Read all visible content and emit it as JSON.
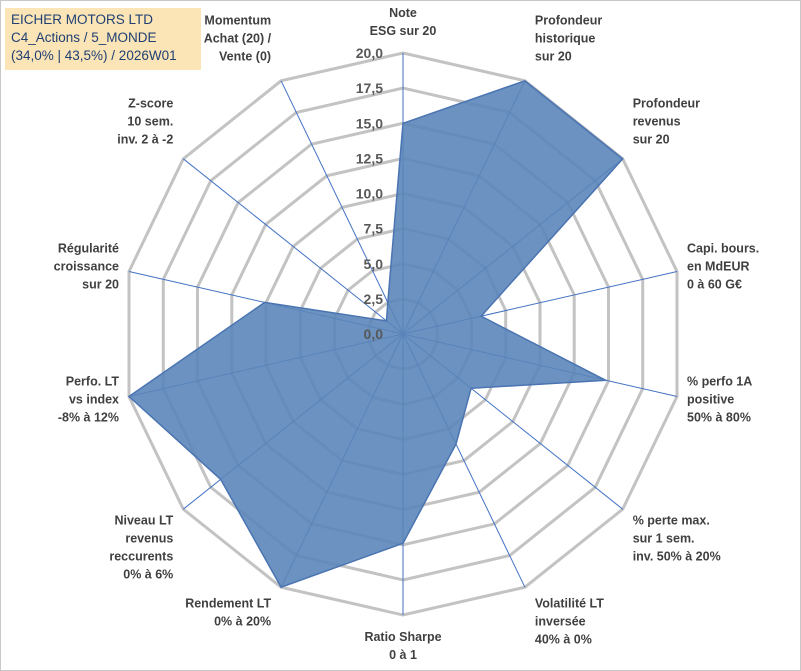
{
  "title_box": {
    "line1": "EICHER MOTORS LTD",
    "line2": "C4_Actions / 5_MONDE",
    "line3": "(34,0% | 43,5%) / 2026W01"
  },
  "colors": {
    "fill": "#5b86b9",
    "stroke": "#4a74b2",
    "grid": "#c3c3c3",
    "spoke": "#4472c4",
    "title_bg": "#fbe5b6",
    "title_text": "#1f3f73"
  },
  "chart_data": {
    "type": "radar",
    "rmin": 0,
    "rmax": 20,
    "tick_step": 2.5,
    "tick_labels": [
      "0,0",
      "2,5",
      "5,0",
      "7,5",
      "10,0",
      "12,5",
      "15,0",
      "17,5",
      "20,0"
    ],
    "axes": [
      {
        "lines": [
          "Note",
          "ESG sur 20"
        ],
        "value": 15.0
      },
      {
        "lines": [
          "Profondeur",
          "historique",
          "sur 20"
        ],
        "value": 20.0
      },
      {
        "lines": [
          "Profondeur",
          "revenus",
          "sur 20"
        ],
        "value": 20.0
      },
      {
        "lines": [
          "Capi. bours.",
          "en MdEUR",
          "0 à 60 G€"
        ],
        "value": 5.7
      },
      {
        "lines": [
          "% perfo 1A",
          "positive",
          "50% à 80%"
        ],
        "value": 14.8
      },
      {
        "lines": [
          "% perte max.",
          "sur 1 sem.",
          "inv. 50% à 20%"
        ],
        "value": 6.2
      },
      {
        "lines": [
          "Volatilité LT",
          "inversée",
          "40% à 0%"
        ],
        "value": 8.7
      },
      {
        "lines": [
          "Ratio Sharpe",
          "0 à 1"
        ],
        "value": 14.9
      },
      {
        "lines": [
          "Rendement LT",
          "0% à 20%"
        ],
        "value": 20.0
      },
      {
        "lines": [
          "Niveau LT",
          "revenus",
          "reccurents",
          "0% à 6%"
        ],
        "value": 16.6
      },
      {
        "lines": [
          "Perfo. LT",
          "vs index",
          "-8% à 12%"
        ],
        "value": 20.0
      },
      {
        "lines": [
          "Régularité",
          "croissance",
          "sur 20"
        ],
        "value": 10.1
      },
      {
        "lines": [
          "Z-score",
          "10 sem.",
          "inv. 2 à -2"
        ],
        "value": 1.5
      },
      {
        "lines": [
          "Momentum",
          "Achat (20) /",
          "Vente (0)"
        ],
        "value": 2.5
      }
    ]
  }
}
